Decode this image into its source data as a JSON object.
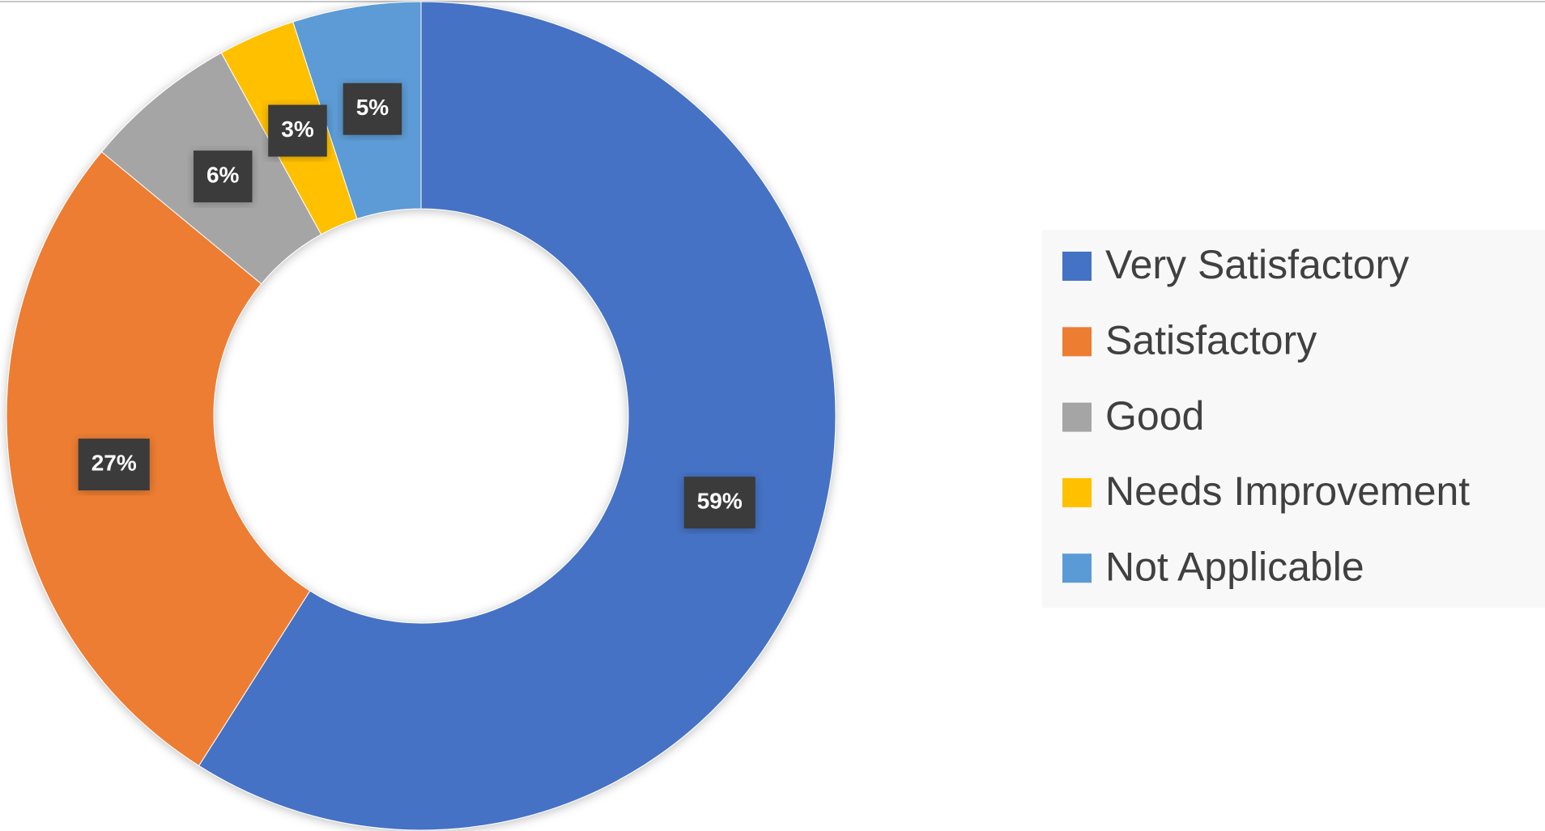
{
  "chart_data": {
    "type": "donut",
    "categories": [
      "Very Satisfactory",
      "Satisfactory",
      "Good",
      "Needs Improvement",
      "Not Applicable"
    ],
    "values": [
      59,
      27,
      6,
      3,
      5
    ],
    "value_labels": [
      "59%",
      "27%",
      "6%",
      "3%",
      "5%"
    ],
    "colors": [
      "#4472c4",
      "#ed7d31",
      "#a5a5a5",
      "#ffc000",
      "#5b9bd5"
    ],
    "legend": "right"
  }
}
